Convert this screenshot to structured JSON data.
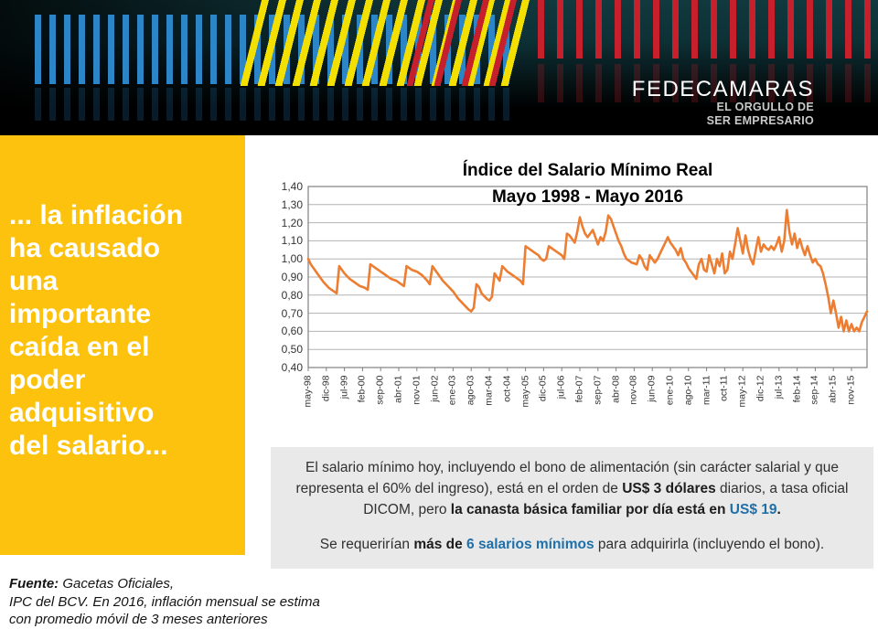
{
  "banner": {
    "logo_title": "FEDECAMARAS",
    "logo_tagline_line1": "EL ORGULLO DE",
    "logo_tagline_line2": "SER EMPRESARIO",
    "colors": {
      "teal_background": "#0d3136",
      "blue_bar": "#2c85c6",
      "yellow_bar": "#f3df00",
      "red_bar": "#c5202c"
    }
  },
  "sidebar": {
    "background": "#fcc20d",
    "text_color": "#ffffff",
    "lines": [
      "... la inflación",
      "ha causado",
      "una",
      "importante",
      "caída en el",
      "poder",
      "adquisitivo",
      "del salario..."
    ]
  },
  "chart_data": {
    "type": "line",
    "title_line1": "Índice del Salario Mínimo Real",
    "title_line2": "Mayo 1998 - Mayo 2016",
    "line_color": "#ED7D31",
    "grid": true,
    "legend": false,
    "ylim": [
      0.4,
      1.4
    ],
    "ytick_labels": [
      "1,40",
      "1,30",
      "1,20",
      "1,10",
      "1,00",
      "0,90",
      "0,80",
      "0,70",
      "0,60",
      "0,50",
      "0,40"
    ],
    "x_unit": "month",
    "x_start": "may-98",
    "x_end": "may-16",
    "xtick_every_months": 7,
    "xtick_labels": [
      "may-98",
      "dic-98",
      "jul-99",
      "feb-00",
      "sep-00",
      "abr-01",
      "nov-01",
      "jun-02",
      "ene-03",
      "ago-03",
      "mar-04",
      "oct-04",
      "may-05",
      "dic-05",
      "jul-06",
      "feb-07",
      "sep-07",
      "abr-08",
      "nov-08",
      "jun-09",
      "ene-10",
      "ago-10",
      "mar-11",
      "oct-11",
      "may-12",
      "dic-12",
      "jul-13",
      "feb-14",
      "sep-14",
      "abr-15",
      "nov-15"
    ],
    "values": [
      1.0,
      0.97,
      0.95,
      0.93,
      0.91,
      0.89,
      0.87,
      0.855,
      0.84,
      0.83,
      0.82,
      0.81,
      0.96,
      0.94,
      0.92,
      0.905,
      0.89,
      0.88,
      0.87,
      0.86,
      0.85,
      0.845,
      0.84,
      0.83,
      0.97,
      0.96,
      0.95,
      0.94,
      0.93,
      0.92,
      0.91,
      0.9,
      0.89,
      0.885,
      0.88,
      0.87,
      0.86,
      0.85,
      0.96,
      0.95,
      0.94,
      0.935,
      0.93,
      0.92,
      0.91,
      0.895,
      0.88,
      0.86,
      0.96,
      0.94,
      0.92,
      0.9,
      0.88,
      0.865,
      0.85,
      0.835,
      0.82,
      0.8,
      0.78,
      0.765,
      0.75,
      0.735,
      0.72,
      0.71,
      0.73,
      0.86,
      0.845,
      0.81,
      0.795,
      0.78,
      0.77,
      0.79,
      0.92,
      0.9,
      0.88,
      0.96,
      0.945,
      0.93,
      0.92,
      0.91,
      0.9,
      0.89,
      0.88,
      0.86,
      1.07,
      1.06,
      1.05,
      1.04,
      1.03,
      1.02,
      1.0,
      0.99,
      1.0,
      1.07,
      1.06,
      1.05,
      1.04,
      1.03,
      1.02,
      1.0,
      1.14,
      1.13,
      1.11,
      1.09,
      1.15,
      1.23,
      1.18,
      1.14,
      1.12,
      1.14,
      1.16,
      1.12,
      1.08,
      1.12,
      1.1,
      1.15,
      1.24,
      1.22,
      1.18,
      1.14,
      1.1,
      1.07,
      1.03,
      1.0,
      0.99,
      0.98,
      0.975,
      0.97,
      1.02,
      1.0,
      0.96,
      0.94,
      1.02,
      1.0,
      0.98,
      1.0,
      1.03,
      1.06,
      1.09,
      1.12,
      1.09,
      1.07,
      1.05,
      1.02,
      1.06,
      1.0,
      0.98,
      0.95,
      0.93,
      0.91,
      0.89,
      0.97,
      1.0,
      0.94,
      0.93,
      1.02,
      0.97,
      0.92,
      1.0,
      0.96,
      1.03,
      0.92,
      0.94,
      1.04,
      1.0,
      1.08,
      1.17,
      1.1,
      1.03,
      1.13,
      1.05,
      1.0,
      0.97,
      1.05,
      1.12,
      1.04,
      1.08,
      1.06,
      1.05,
      1.07,
      1.05,
      1.08,
      1.12,
      1.04,
      1.1,
      1.27,
      1.15,
      1.08,
      1.14,
      1.06,
      1.11,
      1.06,
      1.02,
      1.07,
      1.02,
      0.98,
      1.0,
      0.97,
      0.96,
      0.92,
      0.86,
      0.79,
      0.7,
      0.77,
      0.7,
      0.62,
      0.68,
      0.6,
      0.66,
      0.6,
      0.64,
      0.6,
      0.62,
      0.6,
      0.65,
      0.68,
      0.71
    ]
  },
  "infobox": {
    "background": "#E9E9E9",
    "accent_blue": "#1F6FA8",
    "paragraphs": [
      {
        "segments": [
          {
            "text": "El  salario mínimo hoy, incluyendo el bono de alimentación (sin carácter salarial y que representa el 60% del ingreso), está en el orden de  ",
            "style": "normal"
          },
          {
            "text": "US$ 3 dólares",
            "style": "bold"
          },
          {
            "text": " diarios, a tasa oficial DICOM, pero ",
            "style": "normal"
          },
          {
            "text": "la canasta básica familiar por día está en ",
            "style": "bold"
          },
          {
            "text": "US$ 19",
            "style": "bold-blue"
          },
          {
            "text": ".",
            "style": "bold"
          }
        ]
      },
      {
        "segments": [
          {
            "text": "Se requerirían ",
            "style": "normal"
          },
          {
            "text": "más de ",
            "style": "bold"
          },
          {
            "text": "6 salarios mínimos",
            "style": "bold-blue"
          },
          {
            "text": " para adquirirla (incluyendo el bono).",
            "style": "normal"
          }
        ]
      }
    ]
  },
  "footer": {
    "source_label": "Fuente:",
    "source_rest": " Gacetas Oficiales,",
    "line2": "IPC del BCV. En 2016, inflación mensual se estima",
    "line3": "con promedio móvil de 3 meses anteriores"
  }
}
